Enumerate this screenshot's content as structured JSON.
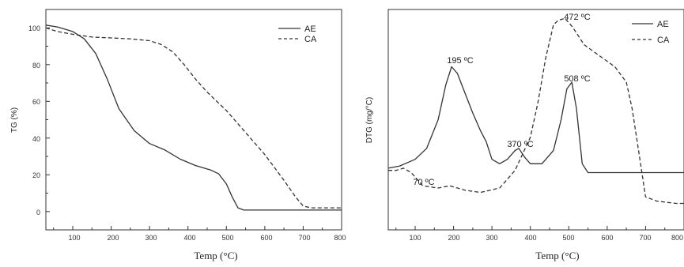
{
  "chart_data": [
    {
      "type": "line",
      "xlabel": "Temp (°C)",
      "ylabel": "TG (%)",
      "xlim": [
        30,
        800
      ],
      "ylim": [
        -10,
        110
      ],
      "xticks": [
        "100",
        "200",
        "300",
        "400",
        "500",
        "600",
        "700",
        "800"
      ],
      "yticks": [
        "0",
        "20",
        "40",
        "60",
        "80",
        "100"
      ],
      "legend_position": "top-right",
      "series": [
        {
          "name": "AE",
          "style": "solid",
          "x": [
            30,
            60,
            100,
            130,
            160,
            190,
            220,
            260,
            300,
            340,
            380,
            420,
            460,
            480,
            500,
            515,
            530,
            545,
            600,
            700,
            800
          ],
          "y": [
            101.5,
            100.5,
            98,
            94,
            86,
            72,
            56,
            44,
            37,
            33.5,
            28.5,
            25,
            22.5,
            20.5,
            15,
            8,
            2,
            0.8,
            0.8,
            0.8,
            0.8
          ]
        },
        {
          "name": "CA",
          "style": "dashed",
          "x": [
            30,
            60,
            100,
            150,
            200,
            250,
            300,
            330,
            360,
            390,
            420,
            450,
            500,
            550,
            600,
            650,
            680,
            700,
            720,
            800
          ],
          "y": [
            100,
            98,
            96.5,
            95,
            94.5,
            94,
            93,
            91,
            87,
            80,
            72,
            65,
            55,
            43,
            31,
            17,
            8,
            3,
            2,
            2
          ]
        }
      ]
    },
    {
      "type": "line",
      "xlabel": "Temp (°C)",
      "ylabel": "DTG (mg/°C)",
      "xlim": [
        30,
        800
      ],
      "ylim": [
        0,
        1
      ],
      "y_tick_labels_shown": false,
      "xticks": [
        "100",
        "200",
        "300",
        "400",
        "500",
        "600",
        "700",
        "800"
      ],
      "legend_position": "top-right",
      "series": [
        {
          "name": "AE",
          "style": "solid",
          "x": [
            30,
            60,
            100,
            130,
            160,
            180,
            195,
            210,
            230,
            250,
            270,
            285,
            300,
            320,
            340,
            360,
            370,
            385,
            400,
            430,
            460,
            480,
            495,
            508,
            520,
            535,
            550,
            600,
            800
          ],
          "y": [
            0.28,
            0.29,
            0.32,
            0.37,
            0.5,
            0.66,
            0.74,
            0.71,
            0.62,
            0.53,
            0.45,
            0.4,
            0.32,
            0.3,
            0.32,
            0.36,
            0.37,
            0.33,
            0.3,
            0.3,
            0.36,
            0.5,
            0.64,
            0.67,
            0.55,
            0.3,
            0.26,
            0.26,
            0.26
          ]
        },
        {
          "name": "CA",
          "style": "dashed",
          "x": [
            30,
            50,
            70,
            90,
            120,
            160,
            190,
            230,
            270,
            320,
            360,
            400,
            420,
            440,
            460,
            472,
            490,
            510,
            540,
            580,
            620,
            650,
            665,
            680,
            700,
            730,
            780,
            800
          ],
          "y": [
            0.27,
            0.27,
            0.28,
            0.26,
            0.2,
            0.19,
            0.2,
            0.18,
            0.17,
            0.19,
            0.27,
            0.42,
            0.58,
            0.78,
            0.93,
            0.95,
            0.96,
            0.92,
            0.84,
            0.79,
            0.74,
            0.67,
            0.55,
            0.38,
            0.15,
            0.13,
            0.12,
            0.12
          ]
        }
      ],
      "annotations": [
        {
          "text": "195 ºC",
          "x": 195,
          "y": 0.74
        },
        {
          "text": "370 ºC",
          "x": 370,
          "y": 0.37
        },
        {
          "text": "472 ºC",
          "x": 472,
          "y": 0.95
        },
        {
          "text": "508 ºC",
          "x": 508,
          "y": 0.67
        },
        {
          "text": "70 ºC",
          "x": 70,
          "y": 0.28
        }
      ]
    }
  ]
}
